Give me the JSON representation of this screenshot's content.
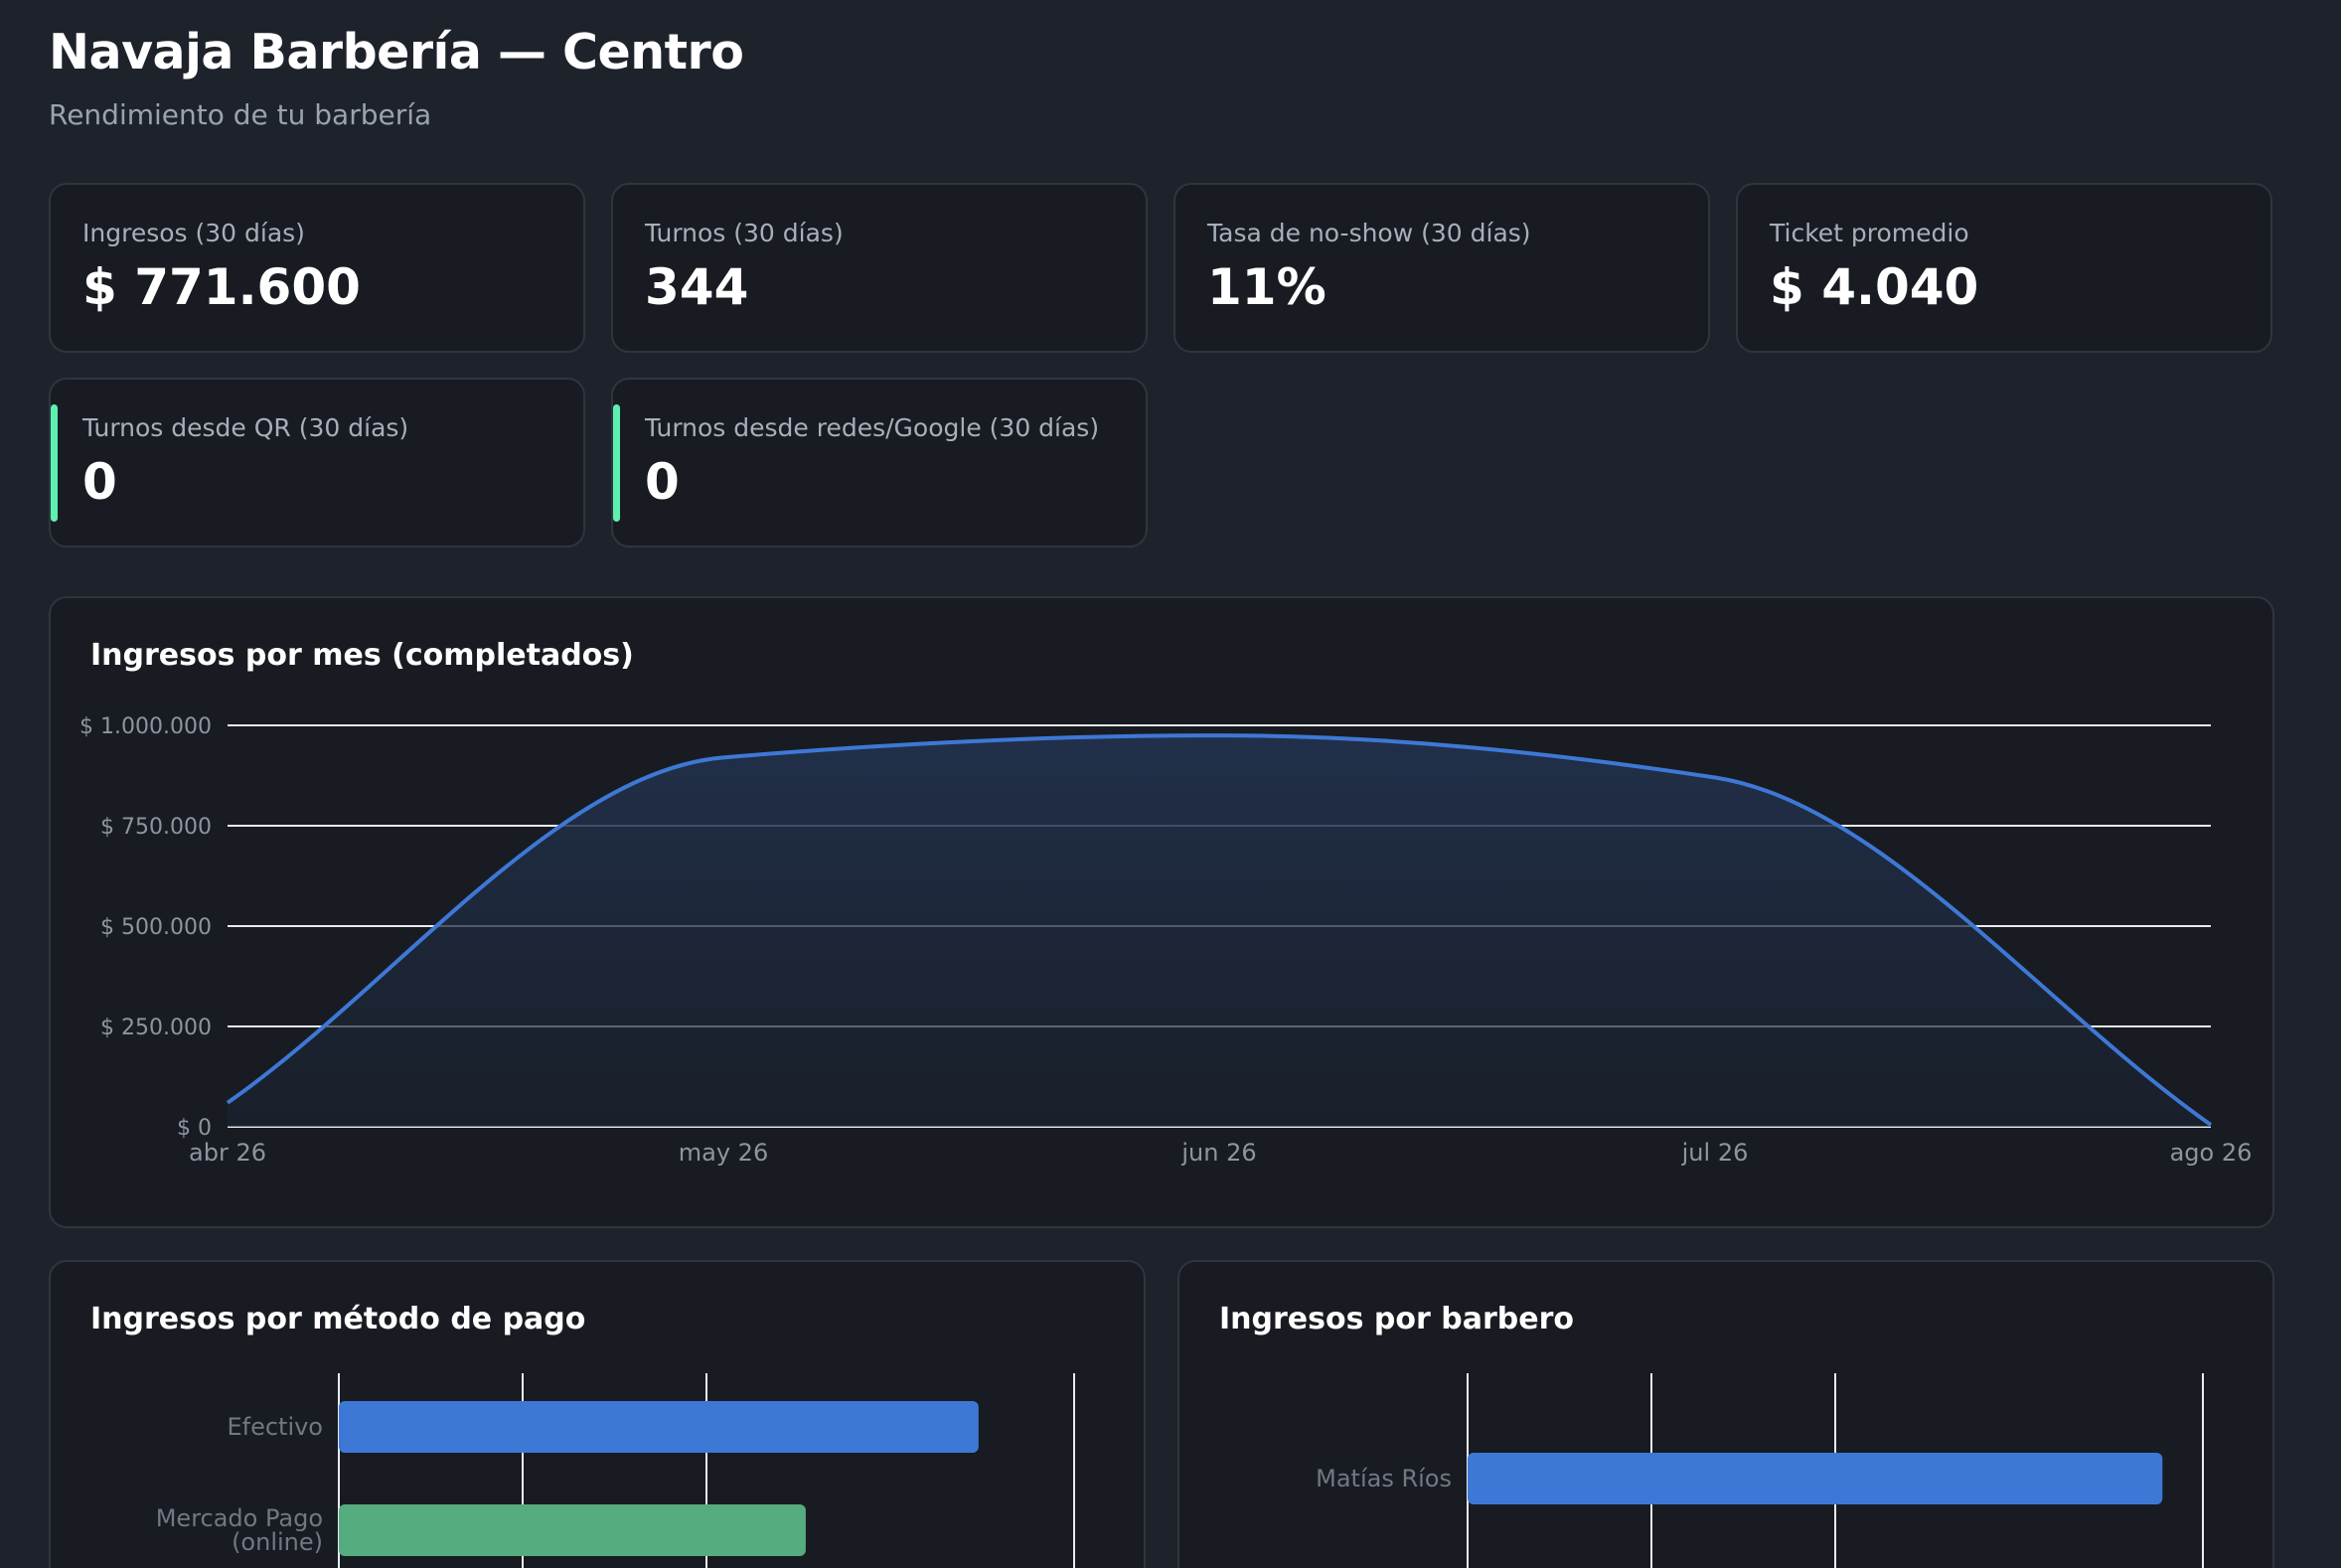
{
  "header": {
    "title": "Navaja Barbería — Centro",
    "subtitle": "Rendimiento de tu barbería"
  },
  "stats": [
    {
      "label": "Ingresos (30 días)",
      "value": "$ 771.600"
    },
    {
      "label": "Turnos (30 días)",
      "value": "344"
    },
    {
      "label": "Tasa de no-show (30 días)",
      "value": "11%"
    },
    {
      "label": "Ticket promedio",
      "value": "$ 4.040"
    },
    {
      "label": "Turnos desde QR (30 días)",
      "value": "0"
    },
    {
      "label": "Turnos desde redes/Google (30 días)",
      "value": "0"
    }
  ],
  "colors": {
    "accent": "#5ef0b0",
    "line": "#3e78d6",
    "bar_primary": "#3e78d6",
    "bar_secondary": "#55ad7f"
  },
  "revenue_chart": {
    "title": "Ingresos por mes (completados)",
    "y_ticks": [
      "$ 0",
      "$ 250.000",
      "$ 500.000",
      "$ 750.000",
      "$ 1.000.000"
    ],
    "x_ticks": [
      "abr 26",
      "may 26",
      "jun 26",
      "jul 26",
      "ago 26"
    ]
  },
  "payment_chart": {
    "title": "Ingresos por método de pago",
    "categories": [
      "Efectivo",
      "Mercado Pago (online)"
    ]
  },
  "barber_chart": {
    "title": "Ingresos por barbero",
    "categories": [
      "Matías Ríos"
    ]
  },
  "chart_data": [
    {
      "type": "area",
      "title": "Ingresos por mes (completados)",
      "x": [
        "abr 26",
        "may 26",
        "jun 26",
        "jul 26",
        "ago 26"
      ],
      "values": [
        60000,
        920000,
        975000,
        870000,
        5000
      ],
      "ylim": [
        0,
        1000000
      ],
      "grid": true
    },
    {
      "type": "bar",
      "orientation": "horizontal",
      "title": "Ingresos por método de pago",
      "categories": [
        "Efectivo",
        "Mercado Pago (online)"
      ],
      "values": [
        870000,
        635000
      ],
      "xlim": [
        0,
        1000000
      ]
    },
    {
      "type": "bar",
      "orientation": "horizontal",
      "title": "Ingresos por barbero",
      "categories": [
        "Matías Ríos"
      ],
      "values": [
        945000
      ],
      "xlim": [
        0,
        1000000
      ]
    }
  ]
}
